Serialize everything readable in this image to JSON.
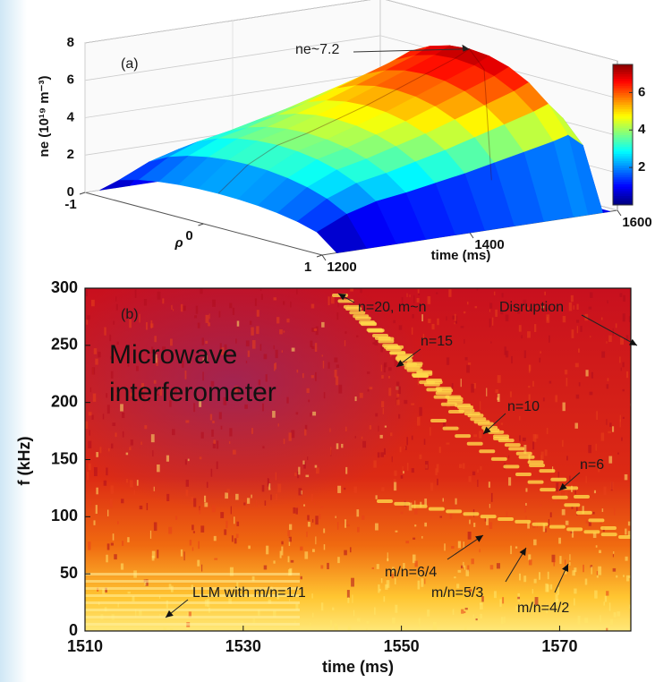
{
  "chart_data": [
    {
      "type": "surface3d",
      "label": "(a)",
      "zlabel": "ne (10¹⁹ m⁻³)",
      "xlabel": "time (ms)",
      "ylabel": "ρ",
      "annotation": "ne~7.2",
      "x": [
        1220,
        1260,
        1300,
        1340,
        1380,
        1420,
        1460,
        1500,
        1540,
        1560,
        1580,
        1590
      ],
      "values": [
        1.5,
        2.8,
        3.6,
        4.0,
        4.5,
        5.0,
        5.6,
        6.2,
        6.8,
        7.2,
        6.0,
        0
      ],
      "xlim": [
        1200,
        1600
      ],
      "xticks": [
        1200,
        1400,
        1600
      ],
      "ylim": [
        -1,
        1
      ],
      "yticks": [
        -1,
        0,
        1
      ],
      "zlim": [
        0,
        8
      ],
      "zticks": [
        0,
        2,
        4,
        6,
        8
      ],
      "clim": [
        0,
        7.5
      ],
      "cticks": [
        2,
        4,
        6
      ],
      "colormap": "jet",
      "grid": true
    },
    {
      "type": "spectrogram",
      "label": "(b)",
      "xlabel": "time (ms)",
      "ylabel": "f (kHz)",
      "xlim": [
        1510,
        1579
      ],
      "xticks": [
        1510,
        1530,
        1550,
        1570
      ],
      "ylim": [
        0,
        300
      ],
      "yticks": [
        0,
        50,
        100,
        150,
        200,
        250,
        300
      ],
      "annotations": [
        "n=20, m~n",
        "Disruption",
        "n=15",
        "n=10",
        "n=6",
        "m/n=6/4",
        "m/n=5/3",
        "m/n=4/2",
        "LLM with m/n=1/1"
      ],
      "overlay": [
        "Microwave",
        "interferometer"
      ]
    }
  ]
}
